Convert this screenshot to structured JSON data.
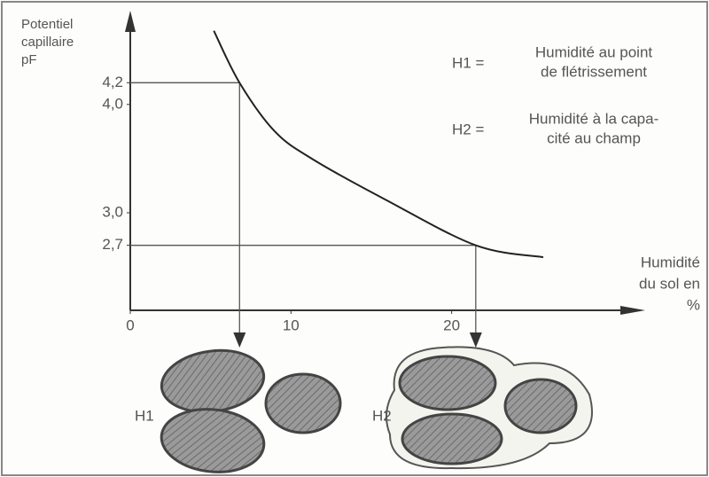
{
  "chart_data": {
    "type": "line",
    "y_label_lines": [
      "Potentiel",
      "capillaire",
      "pF"
    ],
    "x_label_lines": [
      "Humidité",
      "du sol en",
      "%"
    ],
    "x": [
      5.2,
      6.8,
      9,
      11.4,
      15.9,
      21.5,
      25.7
    ],
    "values": [
      4.68,
      4.2,
      3.75,
      3.49,
      3.12,
      2.7,
      2.59
    ],
    "color": "#222222",
    "xlim": [
      0,
      30.5
    ],
    "xticks": [
      0,
      10,
      20
    ],
    "ylim": [
      2.1,
      4.8
    ],
    "yticks": [
      {
        "value": 4.2,
        "label": "4,2"
      },
      {
        "value": 4.0,
        "label": "4,0"
      },
      {
        "value": 3.0,
        "label": "3,0"
      },
      {
        "value": 2.7,
        "label": "2,7"
      }
    ],
    "markers": [
      {
        "x": 6.8,
        "y": 4.2,
        "label": "H1"
      },
      {
        "x": 21.5,
        "y": 2.7,
        "label": "H2"
      }
    ],
    "legend": [
      {
        "key": "H1 =",
        "lines": [
          "Humidité au point",
          "de flétrissement"
        ]
      },
      {
        "key": "H2 =",
        "lines": [
          "Humidité à la capa-",
          "cité au champ"
        ]
      }
    ]
  }
}
